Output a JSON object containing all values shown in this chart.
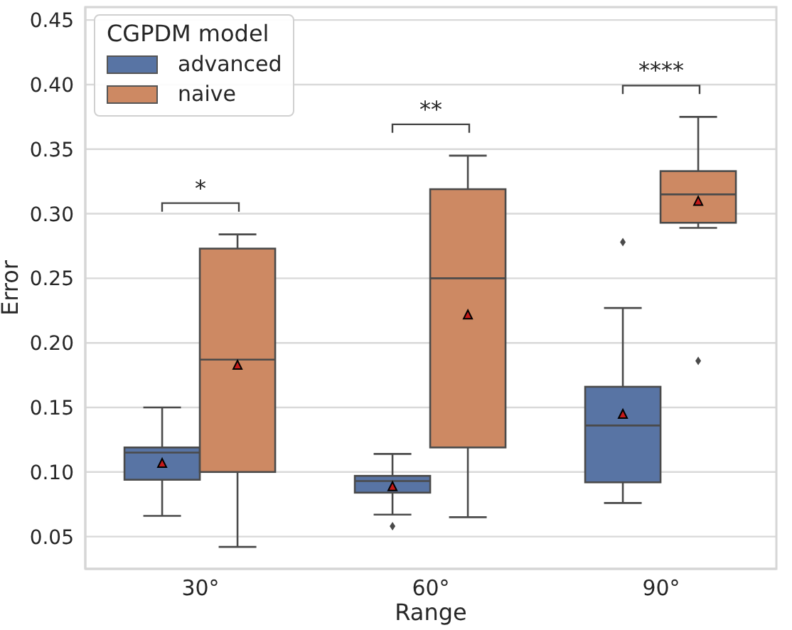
{
  "chart_data": {
    "type": "box",
    "xlabel": "Range",
    "ylabel": "Error",
    "legend_title": "CGPDM model",
    "legend": "top left",
    "grid": "y",
    "categories": [
      "30°",
      "60°",
      "90°"
    ],
    "ylim": [
      0.025,
      0.46
    ],
    "yticks": [
      0.05,
      {
        "value": 0.1,
        "label": "0.10"
      },
      0.15,
      {
        "value": 0.2,
        "label": "0.20"
      },
      0.25,
      {
        "value": 0.3,
        "label": "0.30"
      },
      0.35,
      {
        "value": 0.4,
        "label": "0.40"
      },
      0.45
    ],
    "series": [
      {
        "name": "advanced",
        "color": "#5874a4",
        "boxes": [
          {
            "low": 0.066,
            "q1": 0.094,
            "median": 0.115,
            "q3": 0.119,
            "high": 0.15,
            "mean": 0.107
          },
          {
            "low": 0.067,
            "q1": 0.084,
            "median": 0.093,
            "q3": 0.097,
            "high": 0.114,
            "mean": 0.089,
            "outliers": [
              0.058
            ]
          },
          {
            "low": 0.076,
            "q1": 0.092,
            "median": 0.136,
            "q3": 0.166,
            "high": 0.227,
            "mean": 0.145,
            "outliers": [
              0.278
            ]
          }
        ]
      },
      {
        "name": "naive",
        "color": "#cd8963",
        "boxes": [
          {
            "low": 0.042,
            "q1": 0.1,
            "median": 0.187,
            "q3": 0.273,
            "high": 0.284,
            "mean": 0.183
          },
          {
            "low": 0.065,
            "q1": 0.119,
            "median": 0.25,
            "q3": 0.319,
            "high": 0.345,
            "mean": 0.222
          },
          {
            "low": 0.289,
            "q1": 0.293,
            "median": 0.315,
            "q3": 0.333,
            "high": 0.375,
            "mean": 0.31,
            "outliers": [
              0.186
            ]
          }
        ]
      }
    ],
    "annotations": [
      "*",
      "**",
      "****"
    ]
  }
}
